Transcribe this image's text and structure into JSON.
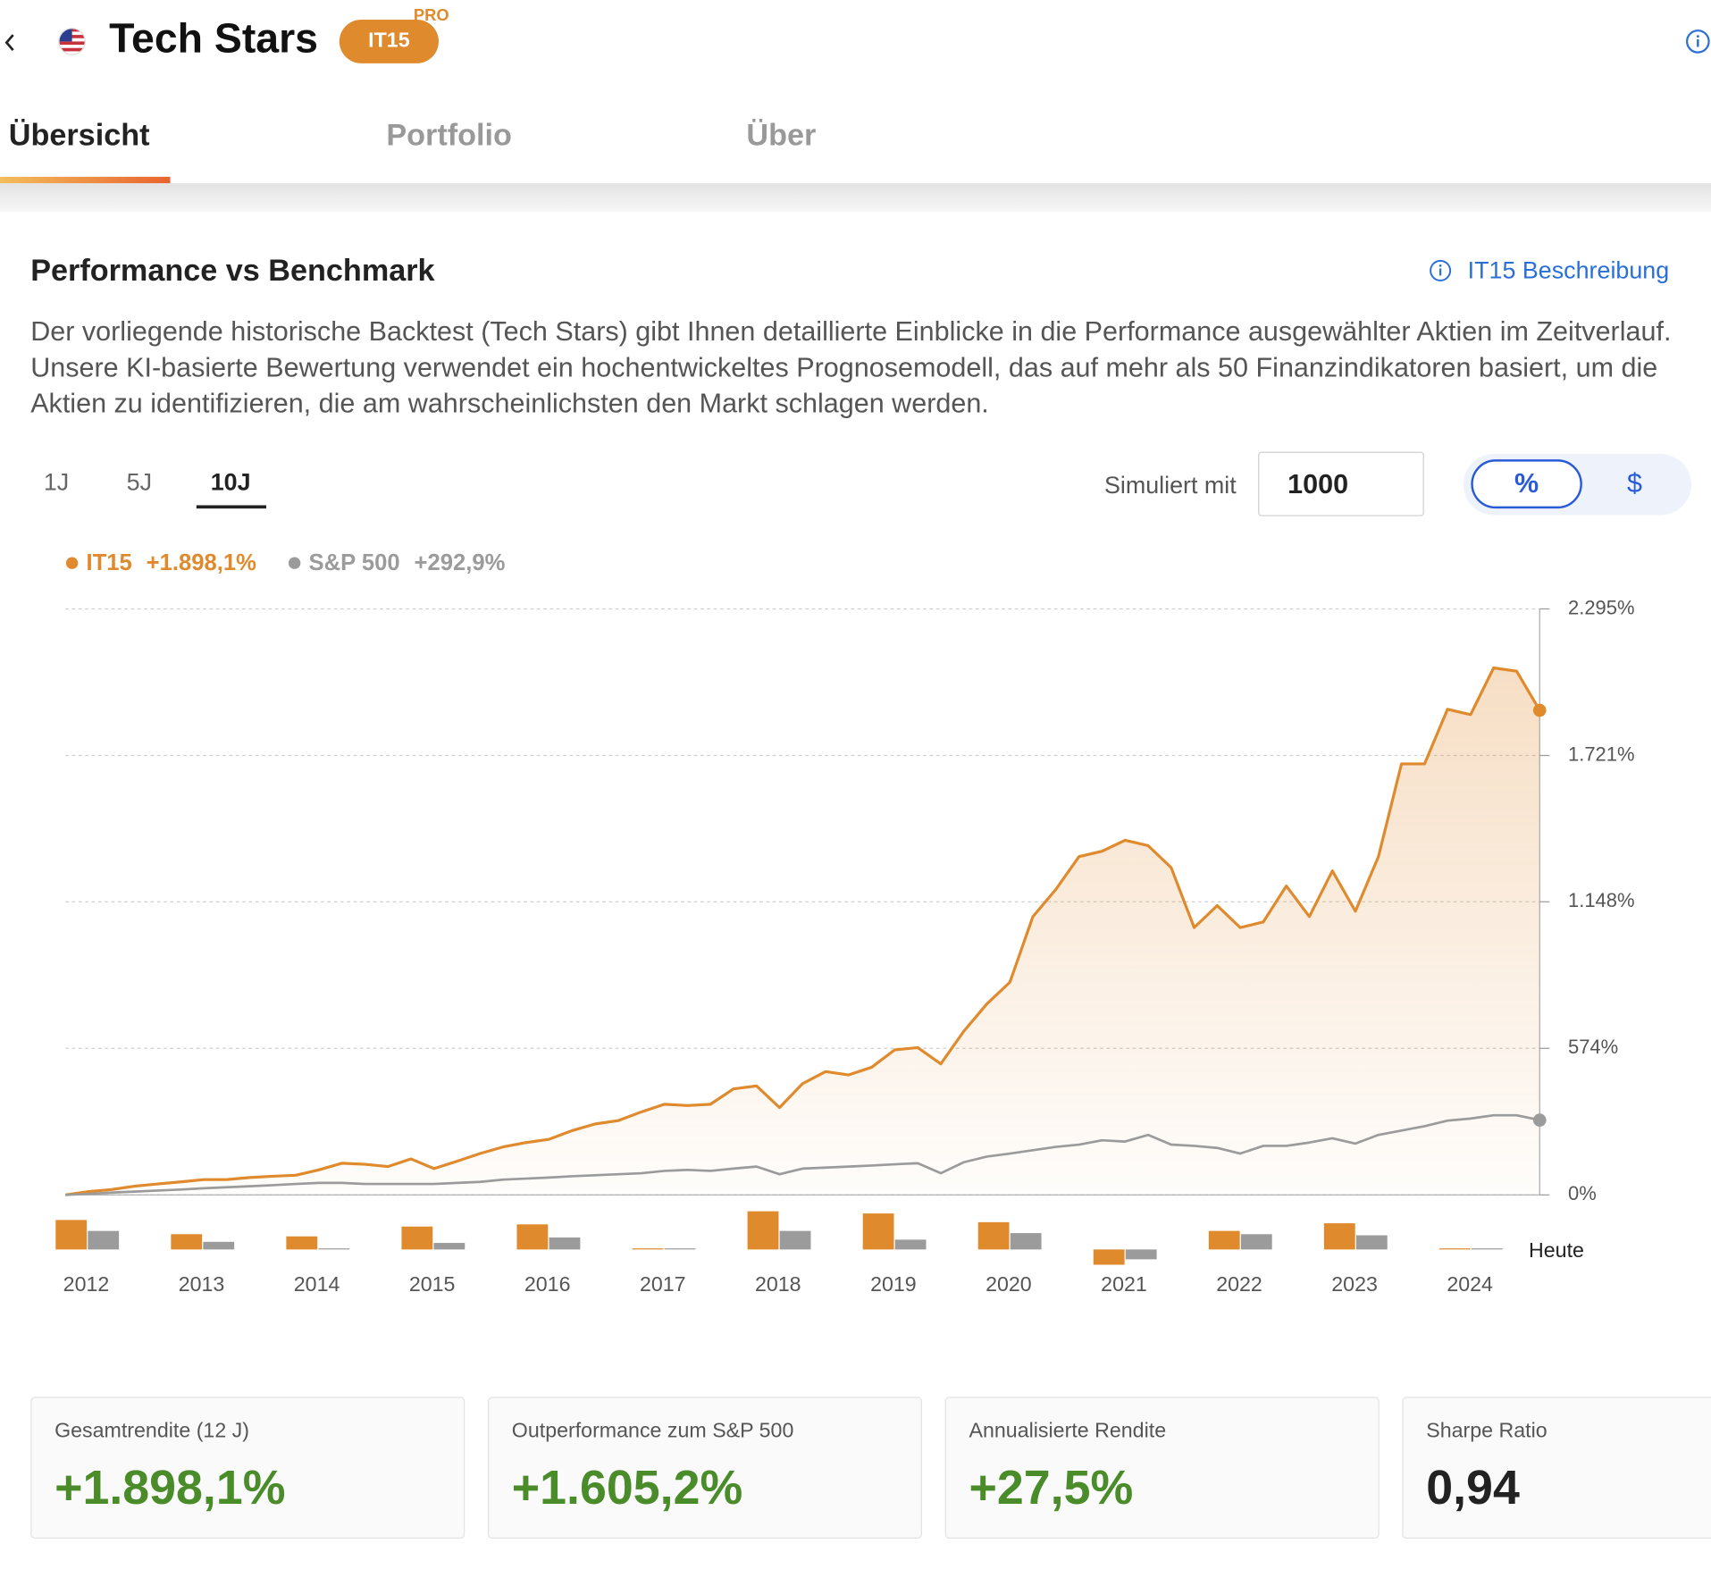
{
  "header": {
    "title": "Tech Stars",
    "badge": "IT15",
    "badge_tag": "PRO"
  },
  "tabs": [
    "Übersicht",
    "Portfolio",
    "Über"
  ],
  "section": {
    "title": "Performance vs Benchmark",
    "link": "IT15 Beschreibung",
    "description": "Der vorliegende historische Backtest (Tech Stars) gibt Ihnen detaillierte Einblicke in die Performance ausgewählter Aktien im Zeitverlauf. Unsere KI-basierte Bewertung verwendet ein hochentwickeltes Prognosemodell, das auf mehr als 50 Finanzindikatoren basiert, um die Aktien zu identifizieren, die am wahrscheinlichsten den Markt schlagen werden."
  },
  "controls": {
    "periods": [
      "1J",
      "5J",
      "10J"
    ],
    "simulate_label": "Simuliert mit",
    "amount": 1000,
    "units": [
      "%",
      "$"
    ]
  },
  "chart_data": [
    {
      "type": "line",
      "x": [
        2011.8,
        2012,
        2012.2,
        2012.4,
        2012.6,
        2012.8,
        2013,
        2013.2,
        2013.4,
        2013.6,
        2013.8,
        2014,
        2014.2,
        2014.4,
        2014.6,
        2014.8,
        2015,
        2015.2,
        2015.4,
        2015.6,
        2015.8,
        2016,
        2016.2,
        2016.4,
        2016.6,
        2016.8,
        2017,
        2017.2,
        2017.4,
        2017.6,
        2017.8,
        2018,
        2018.2,
        2018.4,
        2018.6,
        2018.8,
        2019,
        2019.2,
        2019.4,
        2019.6,
        2019.8,
        2020,
        2020.2,
        2020.4,
        2020.6,
        2020.8,
        2021,
        2021.2,
        2021.4,
        2021.6,
        2021.8,
        2022,
        2022.2,
        2022.4,
        2022.6,
        2022.8,
        2023,
        2023.2,
        2023.4,
        2023.6,
        2023.8,
        2024,
        2024.2,
        2024.4,
        2024.6
      ],
      "series": [
        {
          "name": "IT15",
          "color": "#e08a2e",
          "legend_label": "+1.898,1%",
          "values": [
            0,
            13,
            21,
            34,
            43,
            51,
            60,
            60,
            68,
            73,
            77,
            98,
            124,
            120,
            111,
            141,
            103,
            132,
            162,
            188,
            205,
            218,
            252,
            278,
            291,
            325,
            355,
            350,
            355,
            415,
            427,
            342,
            436,
            483,
            470,
            500,
            568,
            577,
            513,
            641,
            748,
            833,
            1090,
            1197,
            1325,
            1346,
            1389,
            1368,
            1282,
            1047,
            1133,
            1047,
            1069,
            1210,
            1090,
            1269,
            1111,
            1325,
            1688,
            1688,
            1902,
            1881,
            2064,
            2051,
            1898.1
          ]
        },
        {
          "name": "S&P 500",
          "color": "#9b9b9b",
          "legend_label": "+292,9%",
          "values": [
            0,
            4,
            9,
            13,
            17,
            21,
            26,
            30,
            34,
            38,
            43,
            47,
            47,
            43,
            43,
            43,
            43,
            47,
            51,
            60,
            64,
            68,
            73,
            77,
            81,
            85,
            94,
            98,
            94,
            103,
            111,
            81,
            103,
            107,
            111,
            115,
            120,
            124,
            85,
            128,
            150,
            162,
            175,
            188,
            197,
            214,
            209,
            235,
            197,
            192,
            184,
            162,
            192,
            192,
            205,
            222,
            201,
            235,
            252,
            269,
            291,
            299,
            312,
            312,
            292.9
          ]
        }
      ],
      "xlim": [
        2011.8,
        2024.6
      ],
      "ylim": [
        0,
        2295
      ],
      "yticks": [
        {
          "value": 0,
          "label": "0%"
        },
        {
          "value": 574,
          "label": "574%"
        },
        {
          "value": 1148,
          "label": "1.148%"
        },
        {
          "value": 1721,
          "label": "1.721%"
        },
        {
          "value": 2295,
          "label": "2.295%"
        }
      ],
      "grid": true
    },
    {
      "type": "bar",
      "categories": [
        2012,
        2013,
        2014,
        2015,
        2016,
        2017,
        2018,
        2019,
        2020,
        2021,
        2022,
        2023,
        2024
      ],
      "series": [
        {
          "color": "#e08a2e",
          "values": [
            54,
            28,
            24,
            42,
            46,
            2,
            70,
            66,
            50,
            -28,
            34,
            48,
            2
          ]
        },
        {
          "color": "#9b9b9b",
          "values": [
            34,
            14,
            2,
            12,
            22,
            2,
            34,
            18,
            30,
            -18,
            28,
            26,
            2
          ]
        }
      ],
      "annotation": "Heute"
    }
  ],
  "stats": [
    {
      "label": "Gesamtrendite (12 J)",
      "value": "+1.898,1%"
    },
    {
      "label": "Outperformance zum S&P 500",
      "value": "+1.605,2%"
    },
    {
      "label": "Annualisierte Rendite",
      "value": "+27,5%"
    },
    {
      "label": "Sharpe Ratio",
      "value": "0,94"
    }
  ]
}
